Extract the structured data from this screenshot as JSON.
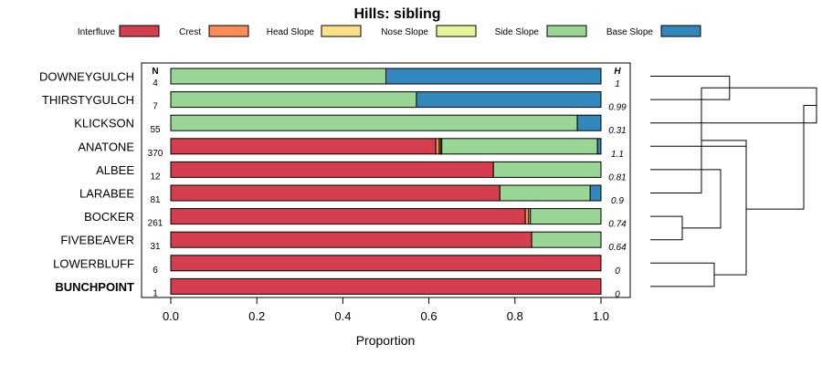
{
  "chart_data": {
    "type": "bar",
    "stacked": true,
    "orientation": "horizontal",
    "title": "Hills: sibling",
    "xlabel": "Proportion",
    "xlim": [
      0,
      1
    ],
    "x_ticks": [
      "0.0",
      "0.2",
      "0.4",
      "0.6",
      "0.8",
      "1.0"
    ],
    "n_header": "N",
    "h_header": "H",
    "legend": [
      {
        "name": "Interfluve",
        "color": "#d53e4f"
      },
      {
        "name": "Crest",
        "color": "#fc8d59"
      },
      {
        "name": "Head Slope",
        "color": "#fee08b"
      },
      {
        "name": "Nose Slope",
        "color": "#e6f598"
      },
      {
        "name": "Side Slope",
        "color": "#99d594"
      },
      {
        "name": "Base Slope",
        "color": "#3288bd"
      }
    ],
    "rows": [
      {
        "label": "DOWNEYGULCH",
        "n": "4",
        "h": "1",
        "bold": false,
        "values": [
          0,
          0,
          0,
          0,
          0.5,
          0.5
        ]
      },
      {
        "label": "THIRSTYGULCH",
        "n": "7",
        "h": "0.99",
        "bold": false,
        "values": [
          0,
          0,
          0,
          0,
          0.571,
          0.429
        ]
      },
      {
        "label": "KLICKSON",
        "n": "55",
        "h": "0.31",
        "bold": false,
        "values": [
          0,
          0,
          0,
          0,
          0.945,
          0.055
        ]
      },
      {
        "label": "ANATONE",
        "n": "370",
        "h": "1.1",
        "bold": false,
        "values": [
          0.616,
          0.008,
          0.003,
          0.003,
          0.362,
          0.008
        ]
      },
      {
        "label": "ALBEE",
        "n": "12",
        "h": "0.81",
        "bold": false,
        "values": [
          0.75,
          0,
          0,
          0,
          0.25,
          0
        ]
      },
      {
        "label": "LARABEE",
        "n": "81",
        "h": "0.9",
        "bold": false,
        "values": [
          0.765,
          0,
          0,
          0,
          0.21,
          0.025
        ]
      },
      {
        "label": "BOCKER",
        "n": "261",
        "h": "0.74",
        "bold": false,
        "values": [
          0.824,
          0.008,
          0,
          0.004,
          0.164,
          0
        ]
      },
      {
        "label": "FIVEBEAVER",
        "n": "31",
        "h": "0.64",
        "bold": false,
        "values": [
          0.839,
          0,
          0,
          0,
          0.161,
          0
        ]
      },
      {
        "label": "LOWERBLUFF",
        "n": "6",
        "h": "0",
        "bold": false,
        "values": [
          1,
          0,
          0,
          0,
          0,
          0
        ]
      },
      {
        "label": "BUNCHPOINT",
        "n": "1",
        "h": "0",
        "bold": true,
        "values": [
          1,
          0,
          0,
          0,
          0,
          0
        ]
      }
    ],
    "dendrogram": {
      "merges": [
        [
          0,
          1,
          0.62
        ],
        [
          6,
          7,
          0.25
        ],
        [
          5,
          10,
          0.4
        ],
        [
          4,
          11,
          0.55
        ],
        [
          12,
          3,
          0.75
        ],
        [
          8,
          9,
          0.5
        ],
        [
          14,
          15,
          0.75
        ],
        [
          10,
          2,
          1.3
        ],
        [
          17,
          16,
          1.2
        ]
      ]
    }
  }
}
